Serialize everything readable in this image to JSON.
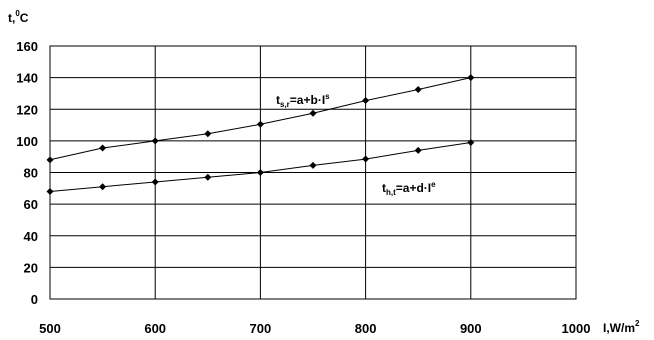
{
  "chart_data": {
    "type": "line",
    "ylabel": {
      "main": "t,",
      "sup": "0",
      "tail": "C"
    },
    "xlabel": {
      "main": "I,W/m",
      "sup": "2"
    },
    "xlim": [
      500,
      1000
    ],
    "ylim": [
      0,
      160
    ],
    "xticks": [
      500,
      600,
      700,
      800,
      900,
      1000
    ],
    "yticks": [
      0,
      20,
      40,
      60,
      80,
      100,
      120,
      140,
      160
    ],
    "xtick_labels": [
      "500",
      "600",
      "700",
      "800",
      "900",
      "1000"
    ],
    "ytick_labels": [
      "0",
      "20",
      "40",
      "60",
      "80",
      "100",
      "120",
      "140",
      "160"
    ],
    "grid": true,
    "x": [
      500,
      550,
      600,
      650,
      700,
      750,
      800,
      850,
      900
    ],
    "series": [
      {
        "label": {
          "t": "t",
          "sub": "s,r",
          "eq": "=a+b·I",
          "sup": "s"
        },
        "values": [
          88,
          95.5,
          100,
          104.5,
          110.5,
          117.5,
          125.5,
          132.5,
          140
        ]
      },
      {
        "label": {
          "t": "t",
          "sub": "h,t",
          "eq": "=a+d·I",
          "sup": "e"
        },
        "values": [
          68,
          71,
          74,
          77,
          80,
          84.5,
          88.5,
          94,
          99
        ]
      }
    ]
  }
}
